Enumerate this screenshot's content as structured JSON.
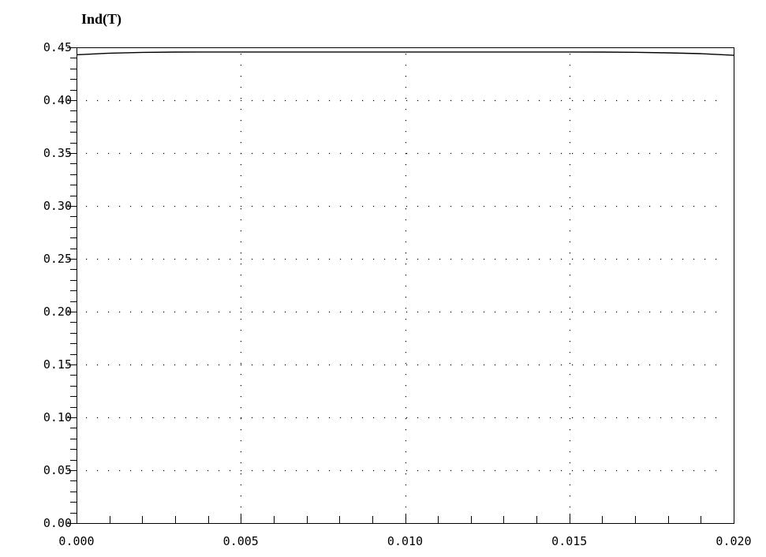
{
  "chart_data": {
    "type": "line",
    "title": "",
    "xlabel": "",
    "ylabel": "Ind(T)",
    "xlim": [
      0.0,
      0.02
    ],
    "ylim": [
      0.0,
      0.45
    ],
    "x_ticks": [
      {
        "value": 0.0,
        "label": "0.000"
      },
      {
        "value": 0.005,
        "label": "0.005"
      },
      {
        "value": 0.01,
        "label": "0.010"
      },
      {
        "value": 0.015,
        "label": "0.015"
      },
      {
        "value": 0.02,
        "label": "0.020"
      }
    ],
    "x_minor_step": 0.001,
    "y_ticks": [
      {
        "value": 0.0,
        "label": "0.00"
      },
      {
        "value": 0.05,
        "label": "0.05"
      },
      {
        "value": 0.1,
        "label": "0.10"
      },
      {
        "value": 0.15,
        "label": "0.15"
      },
      {
        "value": 0.2,
        "label": "0.20"
      },
      {
        "value": 0.25,
        "label": "0.25"
      },
      {
        "value": 0.3,
        "label": "0.30"
      },
      {
        "value": 0.35,
        "label": "0.35"
      },
      {
        "value": 0.4,
        "label": "0.40"
      },
      {
        "value": 0.45,
        "label": "0.45"
      }
    ],
    "y_minor_step": 0.01,
    "grid": true,
    "grid_style": "dotted",
    "legend": "none",
    "series": [
      {
        "color": "#000000",
        "x": [
          0.0,
          0.001,
          0.002,
          0.003,
          0.004,
          0.005,
          0.006,
          0.007,
          0.008,
          0.009,
          0.01,
          0.011,
          0.012,
          0.013,
          0.014,
          0.015,
          0.016,
          0.017,
          0.018,
          0.019,
          0.02
        ],
        "y": [
          0.443,
          0.4445,
          0.4452,
          0.4455,
          0.4456,
          0.4456,
          0.4456,
          0.4456,
          0.4456,
          0.4456,
          0.4456,
          0.4456,
          0.4456,
          0.4456,
          0.4456,
          0.4456,
          0.4455,
          0.4453,
          0.4448,
          0.444,
          0.4425
        ]
      }
    ]
  }
}
